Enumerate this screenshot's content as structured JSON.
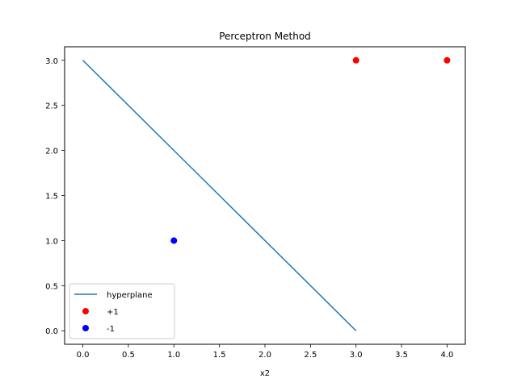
{
  "chart_data": {
    "type": "scatter",
    "title": "Perceptron Method",
    "xlabel": "x2",
    "ylabel": "",
    "xlim": [
      -0.2,
      4.2
    ],
    "ylim": [
      -0.15,
      3.15
    ],
    "xticks": [
      0.0,
      0.5,
      1.0,
      1.5,
      2.0,
      2.5,
      3.0,
      3.5,
      4.0
    ],
    "xtick_labels": [
      "0.0",
      "0.5",
      "1.0",
      "1.5",
      "2.0",
      "2.5",
      "3.0",
      "3.5",
      "4.0"
    ],
    "yticks": [
      0.0,
      0.5,
      1.0,
      1.5,
      2.0,
      2.5,
      3.0
    ],
    "ytick_labels": [
      "0.0",
      "0.5",
      "1.0",
      "1.5",
      "2.0",
      "2.5",
      "3.0"
    ],
    "grid": false,
    "legend_position": "lower-left",
    "series": [
      {
        "name": "hyperplane",
        "kind": "line",
        "color": "#1f77b4",
        "x": [
          0,
          3
        ],
        "y": [
          3,
          0
        ]
      },
      {
        "name": "+1",
        "kind": "scatter",
        "color": "#ff0000",
        "x": [
          3,
          4
        ],
        "y": [
          3,
          3
        ]
      },
      {
        "name": "-1",
        "kind": "scatter",
        "color": "#0000ff",
        "x": [
          1
        ],
        "y": [
          1
        ]
      }
    ]
  }
}
